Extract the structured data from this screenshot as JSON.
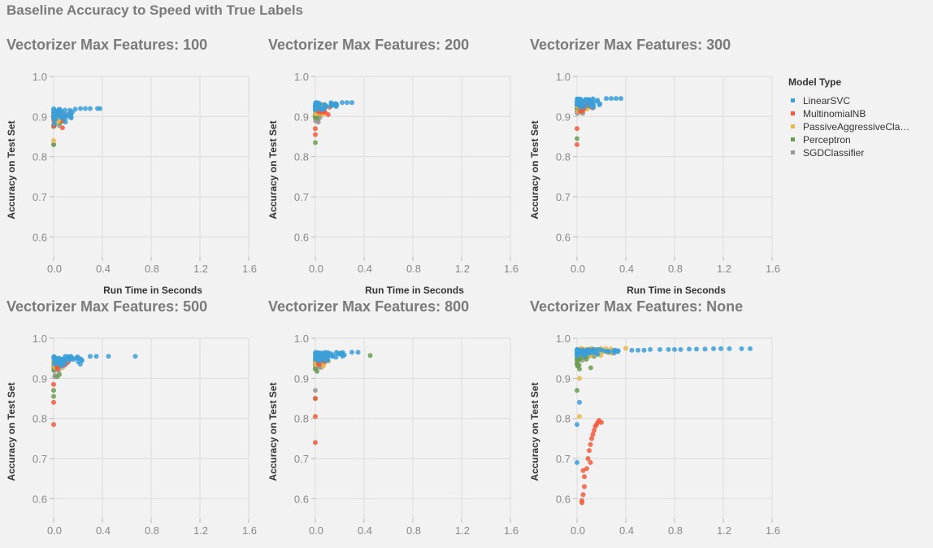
{
  "title": "Baseline Accuracy to Speed with True Labels",
  "legend": {
    "title": "Model Type",
    "items": [
      {
        "name": "LinearSVC",
        "label": "LinearSVC",
        "color": "#3b9fd8"
      },
      {
        "name": "MultinomialNB",
        "label": "MultinomialNB",
        "color": "#f25a3c"
      },
      {
        "name": "PassiveAggressiveClassifier",
        "label": "PassiveAggressiveCla…",
        "color": "#e6b84a"
      },
      {
        "name": "Perceptron",
        "label": "Perceptron",
        "color": "#6c9e50"
      },
      {
        "name": "SGDClassifier",
        "label": "SGDClassifier",
        "color": "#999999"
      }
    ]
  },
  "axes": {
    "xlabel": "Run Time in Seconds",
    "ylabel": "Accuracy on Test Set",
    "xticks": [
      "0.0",
      "0.4",
      "0.8",
      "1.2",
      "1.6"
    ],
    "yticks": [
      "1.0",
      "0.9",
      "0.8",
      "0.7",
      "0.6"
    ]
  },
  "chart_data": [
    {
      "type": "scatter",
      "title": "Vectorizer Max Features: 100",
      "xlim": [
        0,
        1.6
      ],
      "ylim": [
        0.55,
        1.0
      ],
      "grid": true,
      "series": [
        {
          "name": "LinearSVC",
          "clusters": [
            {
              "x": [
                0.0,
                0.18
              ],
              "y": [
                0.88,
                0.92
              ],
              "n": 40
            }
          ],
          "points": [
            [
              0.22,
              0.92
            ],
            [
              0.26,
              0.92
            ],
            [
              0.3,
              0.92
            ],
            [
              0.36,
              0.92
            ],
            [
              0.38,
              0.92
            ]
          ]
        },
        {
          "name": "MultinomialNB",
          "clusters": [
            {
              "x": [
                0.0,
                0.1
              ],
              "y": [
                0.87,
                0.91
              ],
              "n": 20
            }
          ],
          "points": [
            [
              0.12,
              0.905
            ]
          ]
        },
        {
          "name": "PassiveAggressiveClassifier",
          "clusters": [
            {
              "x": [
                0.0,
                0.07
              ],
              "y": [
                0.88,
                0.915
              ],
              "n": 30
            }
          ],
          "points": [
            [
              0.0,
              0.84
            ]
          ]
        },
        {
          "name": "Perceptron",
          "clusters": [
            {
              "x": [
                0.0,
                0.06
              ],
              "y": [
                0.88,
                0.9
              ],
              "n": 15
            }
          ],
          "points": [
            [
              0.0,
              0.83
            ],
            [
              0.0,
              0.875
            ]
          ]
        },
        {
          "name": "SGDClassifier",
          "clusters": [
            {
              "x": [
                0.0,
                0.05
              ],
              "y": [
                0.87,
                0.91
              ],
              "n": 15
            }
          ],
          "points": [
            [
              0.0,
              0.83
            ]
          ]
        }
      ]
    },
    {
      "type": "scatter",
      "title": "Vectorizer Max Features: 200",
      "xlim": [
        0,
        1.6
      ],
      "ylim": [
        0.55,
        1.0
      ],
      "grid": true,
      "series": [
        {
          "name": "LinearSVC",
          "clusters": [
            {
              "x": [
                0.0,
                0.18
              ],
              "y": [
                0.91,
                0.935
              ],
              "n": 45
            }
          ],
          "points": [
            [
              0.22,
              0.935
            ],
            [
              0.26,
              0.935
            ],
            [
              0.3,
              0.935
            ]
          ]
        },
        {
          "name": "MultinomialNB",
          "clusters": [
            {
              "x": [
                0.02,
                0.12
              ],
              "y": [
                0.9,
                0.925
              ],
              "n": 20
            }
          ],
          "points": [
            [
              0.0,
              0.855
            ],
            [
              0.0,
              0.87
            ]
          ]
        },
        {
          "name": "PassiveAggressiveClassifier",
          "clusters": [
            {
              "x": [
                0.0,
                0.08
              ],
              "y": [
                0.9,
                0.93
              ],
              "n": 35
            }
          ],
          "points": []
        },
        {
          "name": "Perceptron",
          "clusters": [
            {
              "x": [
                0.0,
                0.06
              ],
              "y": [
                0.89,
                0.92
              ],
              "n": 15
            }
          ],
          "points": [
            [
              0.0,
              0.835
            ]
          ]
        },
        {
          "name": "SGDClassifier",
          "clusters": [
            {
              "x": [
                0.0,
                0.05
              ],
              "y": [
                0.88,
                0.92
              ],
              "n": 15
            }
          ],
          "points": []
        }
      ]
    },
    {
      "type": "scatter",
      "title": "Vectorizer Max Features: 300",
      "xlim": [
        0,
        1.6
      ],
      "ylim": [
        0.55,
        1.0
      ],
      "grid": true,
      "series": [
        {
          "name": "LinearSVC",
          "clusters": [
            {
              "x": [
                0.0,
                0.2
              ],
              "y": [
                0.92,
                0.945
              ],
              "n": 45
            }
          ],
          "points": [
            [
              0.24,
              0.945
            ],
            [
              0.28,
              0.945
            ],
            [
              0.32,
              0.945
            ],
            [
              0.36,
              0.945
            ]
          ]
        },
        {
          "name": "MultinomialNB",
          "clusters": [
            {
              "x": [
                0.02,
                0.13
              ],
              "y": [
                0.91,
                0.935
              ],
              "n": 20
            }
          ],
          "points": [
            [
              0.0,
              0.83
            ],
            [
              0.0,
              0.87
            ]
          ]
        },
        {
          "name": "PassiveAggressiveClassifier",
          "clusters": [
            {
              "x": [
                0.0,
                0.1
              ],
              "y": [
                0.91,
                0.94
              ],
              "n": 35
            }
          ],
          "points": []
        },
        {
          "name": "Perceptron",
          "clusters": [
            {
              "x": [
                0.0,
                0.06
              ],
              "y": [
                0.9,
                0.93
              ],
              "n": 15
            }
          ],
          "points": [
            [
              0.0,
              0.845
            ]
          ]
        },
        {
          "name": "SGDClassifier",
          "clusters": [
            {
              "x": [
                0.0,
                0.05
              ],
              "y": [
                0.89,
                0.93
              ],
              "n": 15
            }
          ],
          "points": []
        }
      ]
    },
    {
      "type": "scatter",
      "title": "Vectorizer Max Features: 500",
      "xlim": [
        0,
        1.6
      ],
      "ylim": [
        0.55,
        1.0
      ],
      "grid": true,
      "series": [
        {
          "name": "LinearSVC",
          "clusters": [
            {
              "x": [
                0.0,
                0.25
              ],
              "y": [
                0.93,
                0.955
              ],
              "n": 45
            }
          ],
          "points": [
            [
              0.3,
              0.955
            ],
            [
              0.35,
              0.955
            ],
            [
              0.45,
              0.955
            ],
            [
              0.67,
              0.955
            ]
          ]
        },
        {
          "name": "MultinomialNB",
          "clusters": [
            {
              "x": [
                0.02,
                0.12
              ],
              "y": [
                0.92,
                0.945
              ],
              "n": 20
            }
          ],
          "points": [
            [
              0.0,
              0.785
            ],
            [
              0.0,
              0.84
            ],
            [
              0.0,
              0.885
            ]
          ]
        },
        {
          "name": "PassiveAggressiveClassifier",
          "clusters": [
            {
              "x": [
                0.0,
                0.1
              ],
              "y": [
                0.92,
                0.95
              ],
              "n": 35
            }
          ],
          "points": []
        },
        {
          "name": "Perceptron",
          "clusters": [
            {
              "x": [
                0.0,
                0.06
              ],
              "y": [
                0.9,
                0.94
              ],
              "n": 15
            }
          ],
          "points": [
            [
              0.0,
              0.855
            ],
            [
              0.0,
              0.87
            ]
          ]
        },
        {
          "name": "SGDClassifier",
          "clusters": [
            {
              "x": [
                0.0,
                0.05
              ],
              "y": [
                0.9,
                0.94
              ],
              "n": 15
            }
          ],
          "points": []
        }
      ]
    },
    {
      "type": "scatter",
      "title": "Vectorizer Max Features: 800",
      "xlim": [
        0,
        1.6
      ],
      "ylim": [
        0.55,
        1.0
      ],
      "grid": true,
      "series": [
        {
          "name": "LinearSVC",
          "clusters": [
            {
              "x": [
                0.0,
                0.25
              ],
              "y": [
                0.94,
                0.965
              ],
              "n": 50
            }
          ],
          "points": [
            [
              0.3,
              0.965
            ],
            [
              0.35,
              0.965
            ]
          ]
        },
        {
          "name": "MultinomialNB",
          "clusters": [
            {
              "x": [
                0.02,
                0.1
              ],
              "y": [
                0.93,
                0.955
              ],
              "n": 20
            }
          ],
          "points": [
            [
              0.0,
              0.74
            ],
            [
              0.0,
              0.805
            ],
            [
              0.0,
              0.85
            ]
          ]
        },
        {
          "name": "PassiveAggressiveClassifier",
          "clusters": [
            {
              "x": [
                0.0,
                0.12
              ],
              "y": [
                0.93,
                0.96
              ],
              "n": 35
            }
          ],
          "points": []
        },
        {
          "name": "Perceptron",
          "clusters": [
            {
              "x": [
                0.0,
                0.08
              ],
              "y": [
                0.91,
                0.95
              ],
              "n": 15
            }
          ],
          "points": [
            [
              0.45,
              0.957
            ],
            [
              0.0,
              0.85
            ]
          ]
        },
        {
          "name": "SGDClassifier",
          "clusters": [
            {
              "x": [
                0.0,
                0.05
              ],
              "y": [
                0.9,
                0.95
              ],
              "n": 15
            }
          ],
          "points": [
            [
              0.0,
              0.87
            ]
          ]
        }
      ]
    },
    {
      "type": "scatter",
      "title": "Vectorizer Max Features: None",
      "xlim": [
        0,
        1.6
      ],
      "ylim": [
        0.55,
        1.0
      ],
      "grid": true,
      "series": [
        {
          "name": "LinearSVC",
          "clusters": [
            {
              "x": [
                0.0,
                0.35
              ],
              "y": [
                0.955,
                0.972
              ],
              "n": 50
            }
          ],
          "points": [
            [
              0.0,
              0.785
            ],
            [
              0.0,
              0.69
            ],
            [
              0.02,
              0.84
            ],
            [
              0.45,
              0.97
            ],
            [
              0.5,
              0.97
            ],
            [
              0.55,
              0.97
            ],
            [
              0.6,
              0.972
            ],
            [
              0.68,
              0.972
            ],
            [
              0.75,
              0.972
            ],
            [
              0.8,
              0.972
            ],
            [
              0.85,
              0.972
            ],
            [
              0.92,
              0.973
            ],
            [
              0.98,
              0.973
            ],
            [
              1.05,
              0.973
            ],
            [
              1.12,
              0.974
            ],
            [
              1.18,
              0.974
            ],
            [
              1.25,
              0.974
            ],
            [
              1.35,
              0.974
            ],
            [
              1.42,
              0.974
            ]
          ]
        },
        {
          "name": "MultinomialNB",
          "clusters": [],
          "points": [
            [
              0.04,
              0.595
            ],
            [
              0.05,
              0.61
            ],
            [
              0.06,
              0.63
            ],
            [
              0.06,
              0.655
            ],
            [
              0.08,
              0.675
            ],
            [
              0.09,
              0.7
            ],
            [
              0.1,
              0.72
            ],
            [
              0.11,
              0.735
            ],
            [
              0.12,
              0.75
            ],
            [
              0.13,
              0.76
            ],
            [
              0.14,
              0.77
            ],
            [
              0.15,
              0.78
            ],
            [
              0.16,
              0.785
            ],
            [
              0.17,
              0.79
            ],
            [
              0.18,
              0.795
            ],
            [
              0.2,
              0.79
            ],
            [
              0.05,
              0.67
            ],
            [
              0.11,
              0.69
            ],
            [
              0.04,
              0.59
            ]
          ]
        },
        {
          "name": "PassiveAggressiveClassifier",
          "clusters": [
            {
              "x": [
                0.02,
                0.3
              ],
              "y": [
                0.955,
                0.975
              ],
              "n": 50
            }
          ],
          "points": [
            [
              0.4,
              0.975
            ],
            [
              0.02,
              0.805
            ],
            [
              0.02,
              0.9
            ]
          ]
        },
        {
          "name": "Perceptron",
          "clusters": [
            {
              "x": [
                0.0,
                0.15
              ],
              "y": [
                0.92,
                0.965
              ],
              "n": 20
            }
          ],
          "points": [
            [
              0.0,
              0.87
            ]
          ]
        },
        {
          "name": "SGDClassifier",
          "clusters": [
            {
              "x": [
                0.0,
                0.1
              ],
              "y": [
                0.92,
                0.96
              ],
              "n": 15
            }
          ],
          "points": []
        }
      ]
    }
  ]
}
